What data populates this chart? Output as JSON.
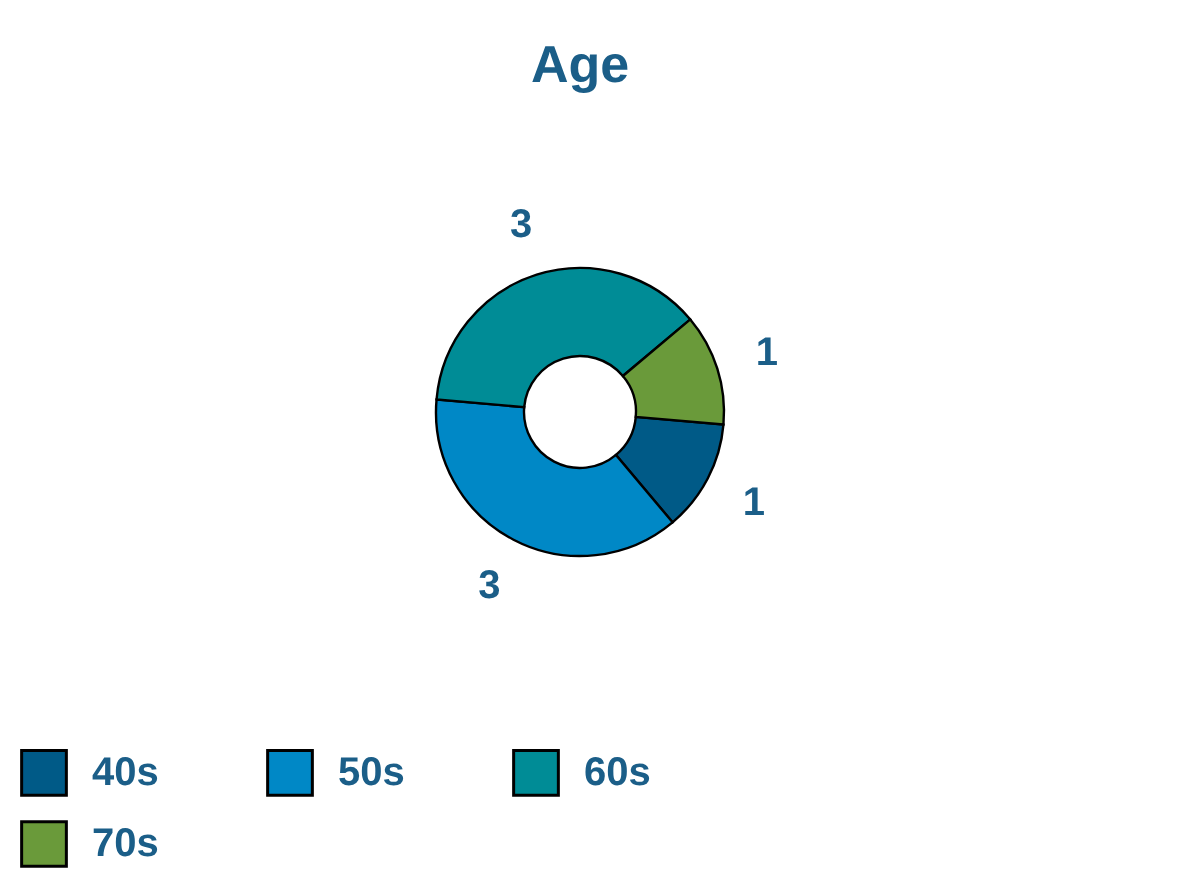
{
  "chart_data": {
    "type": "donut",
    "title": "Age",
    "categories": [
      "40s",
      "50s",
      "60s",
      "70s"
    ],
    "values": [
      1,
      3,
      3,
      1
    ],
    "colors": [
      "#005a87",
      "#0088c6",
      "#008c96",
      "#6a9a3a"
    ],
    "data_labels": true,
    "legend": "bottom"
  }
}
